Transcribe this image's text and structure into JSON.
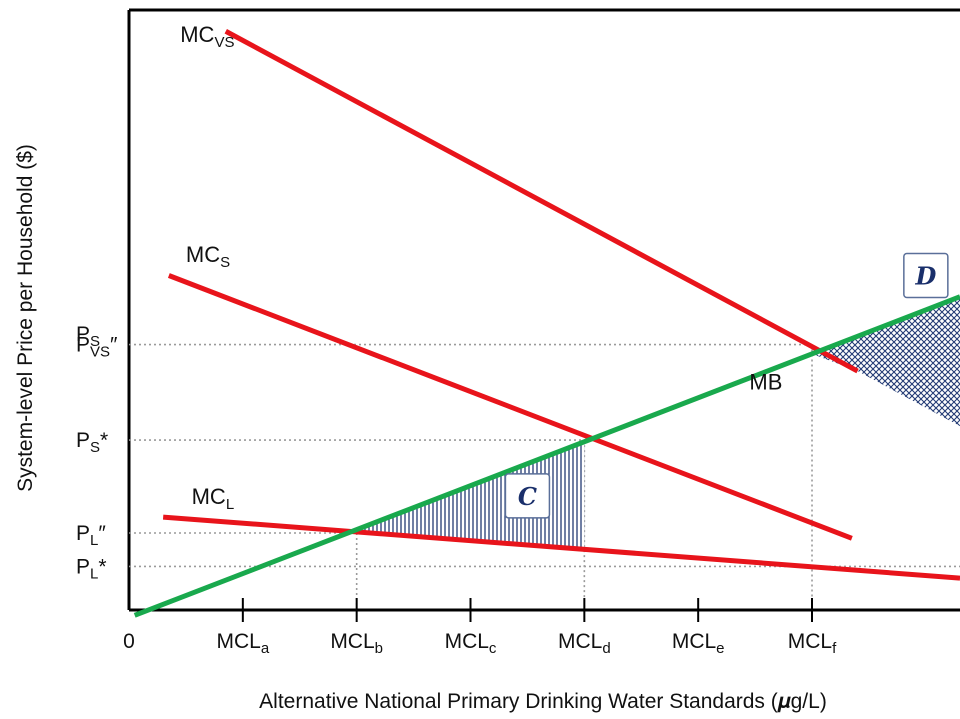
{
  "chart_data": {
    "type": "line",
    "xlabel": "Alternative National Primary Drinking Water Standards (𝝁g/L)",
    "ylabel": "System-level Price per Household ($)",
    "x_origin_label": "0",
    "x_ticks": [
      {
        "x": 1,
        "base": "MCL",
        "sub": "a"
      },
      {
        "x": 2,
        "base": "MCL",
        "sub": "b"
      },
      {
        "x": 3,
        "base": "MCL",
        "sub": "c"
      },
      {
        "x": 4,
        "base": "MCL",
        "sub": "d"
      },
      {
        "x": 5,
        "base": "MCL",
        "sub": "e"
      },
      {
        "x": 6,
        "base": "MCL",
        "sub": "f"
      }
    ],
    "y_ticks": [
      {
        "y": 5.2,
        "base": "P",
        "sub": "S",
        "suffix": ""
      },
      {
        "y": 5.0,
        "base": "P",
        "sub": "VS",
        "suffix": "″"
      },
      {
        "y": 3.2,
        "base": "P",
        "sub": "S",
        "suffix": "*"
      },
      {
        "y": 1.45,
        "base": "P",
        "sub": "L",
        "suffix": "″"
      },
      {
        "y": 0.82,
        "base": "P",
        "sub": "L",
        "suffix": "*"
      }
    ],
    "xlim": [
      0,
      7.3
    ],
    "ylim": [
      0,
      11.3
    ],
    "series": [
      {
        "name": "MC",
        "sub": "VS",
        "color": "#e8141b",
        "x": [
          0.85,
          6.4
        ],
        "y": [
          10.9,
          4.5
        ],
        "label_at": [
          0.45,
          10.7
        ]
      },
      {
        "name": "MC",
        "sub": "S",
        "color": "#e8141b",
        "x": [
          0.35,
          6.35
        ],
        "y": [
          6.3,
          1.35
        ],
        "label_at": [
          0.5,
          6.55
        ]
      },
      {
        "name": "MC",
        "sub": "L",
        "color": "#e8141b",
        "x": [
          0.3,
          7.3
        ],
        "y": [
          1.75,
          0.6
        ],
        "label_at": [
          0.55,
          2.0
        ]
      },
      {
        "name": "MB",
        "sub": "",
        "color": "#19a94d",
        "x": [
          0.05,
          7.3
        ],
        "y": [
          -0.1,
          5.9
        ],
        "label_at": [
          5.45,
          4.15
        ]
      }
    ],
    "reference_lines": [
      {
        "y": 5.0,
        "x_end": 6.0
      },
      {
        "y": 3.2,
        "x_end": 4.0
      },
      {
        "y": 1.45,
        "x_end": 2.0
      },
      {
        "y": 0.82,
        "x_end": 7.3
      }
    ],
    "vertical_guides": [
      {
        "x": 2.0,
        "y_top": 1.45
      },
      {
        "x": 4.0,
        "y_top": 3.2
      },
      {
        "x": 6.0,
        "y_top": 5.0
      }
    ],
    "annotations": [
      {
        "label": "C",
        "x": 3.5,
        "y": 2.15,
        "description": "shaded area between MB and MC_L from MCL_b to MCL_d"
      },
      {
        "label": "D",
        "x": 7.0,
        "y": 6.3,
        "description": "shaded area between MB and MC_VS beyond MCL_f"
      }
    ]
  }
}
